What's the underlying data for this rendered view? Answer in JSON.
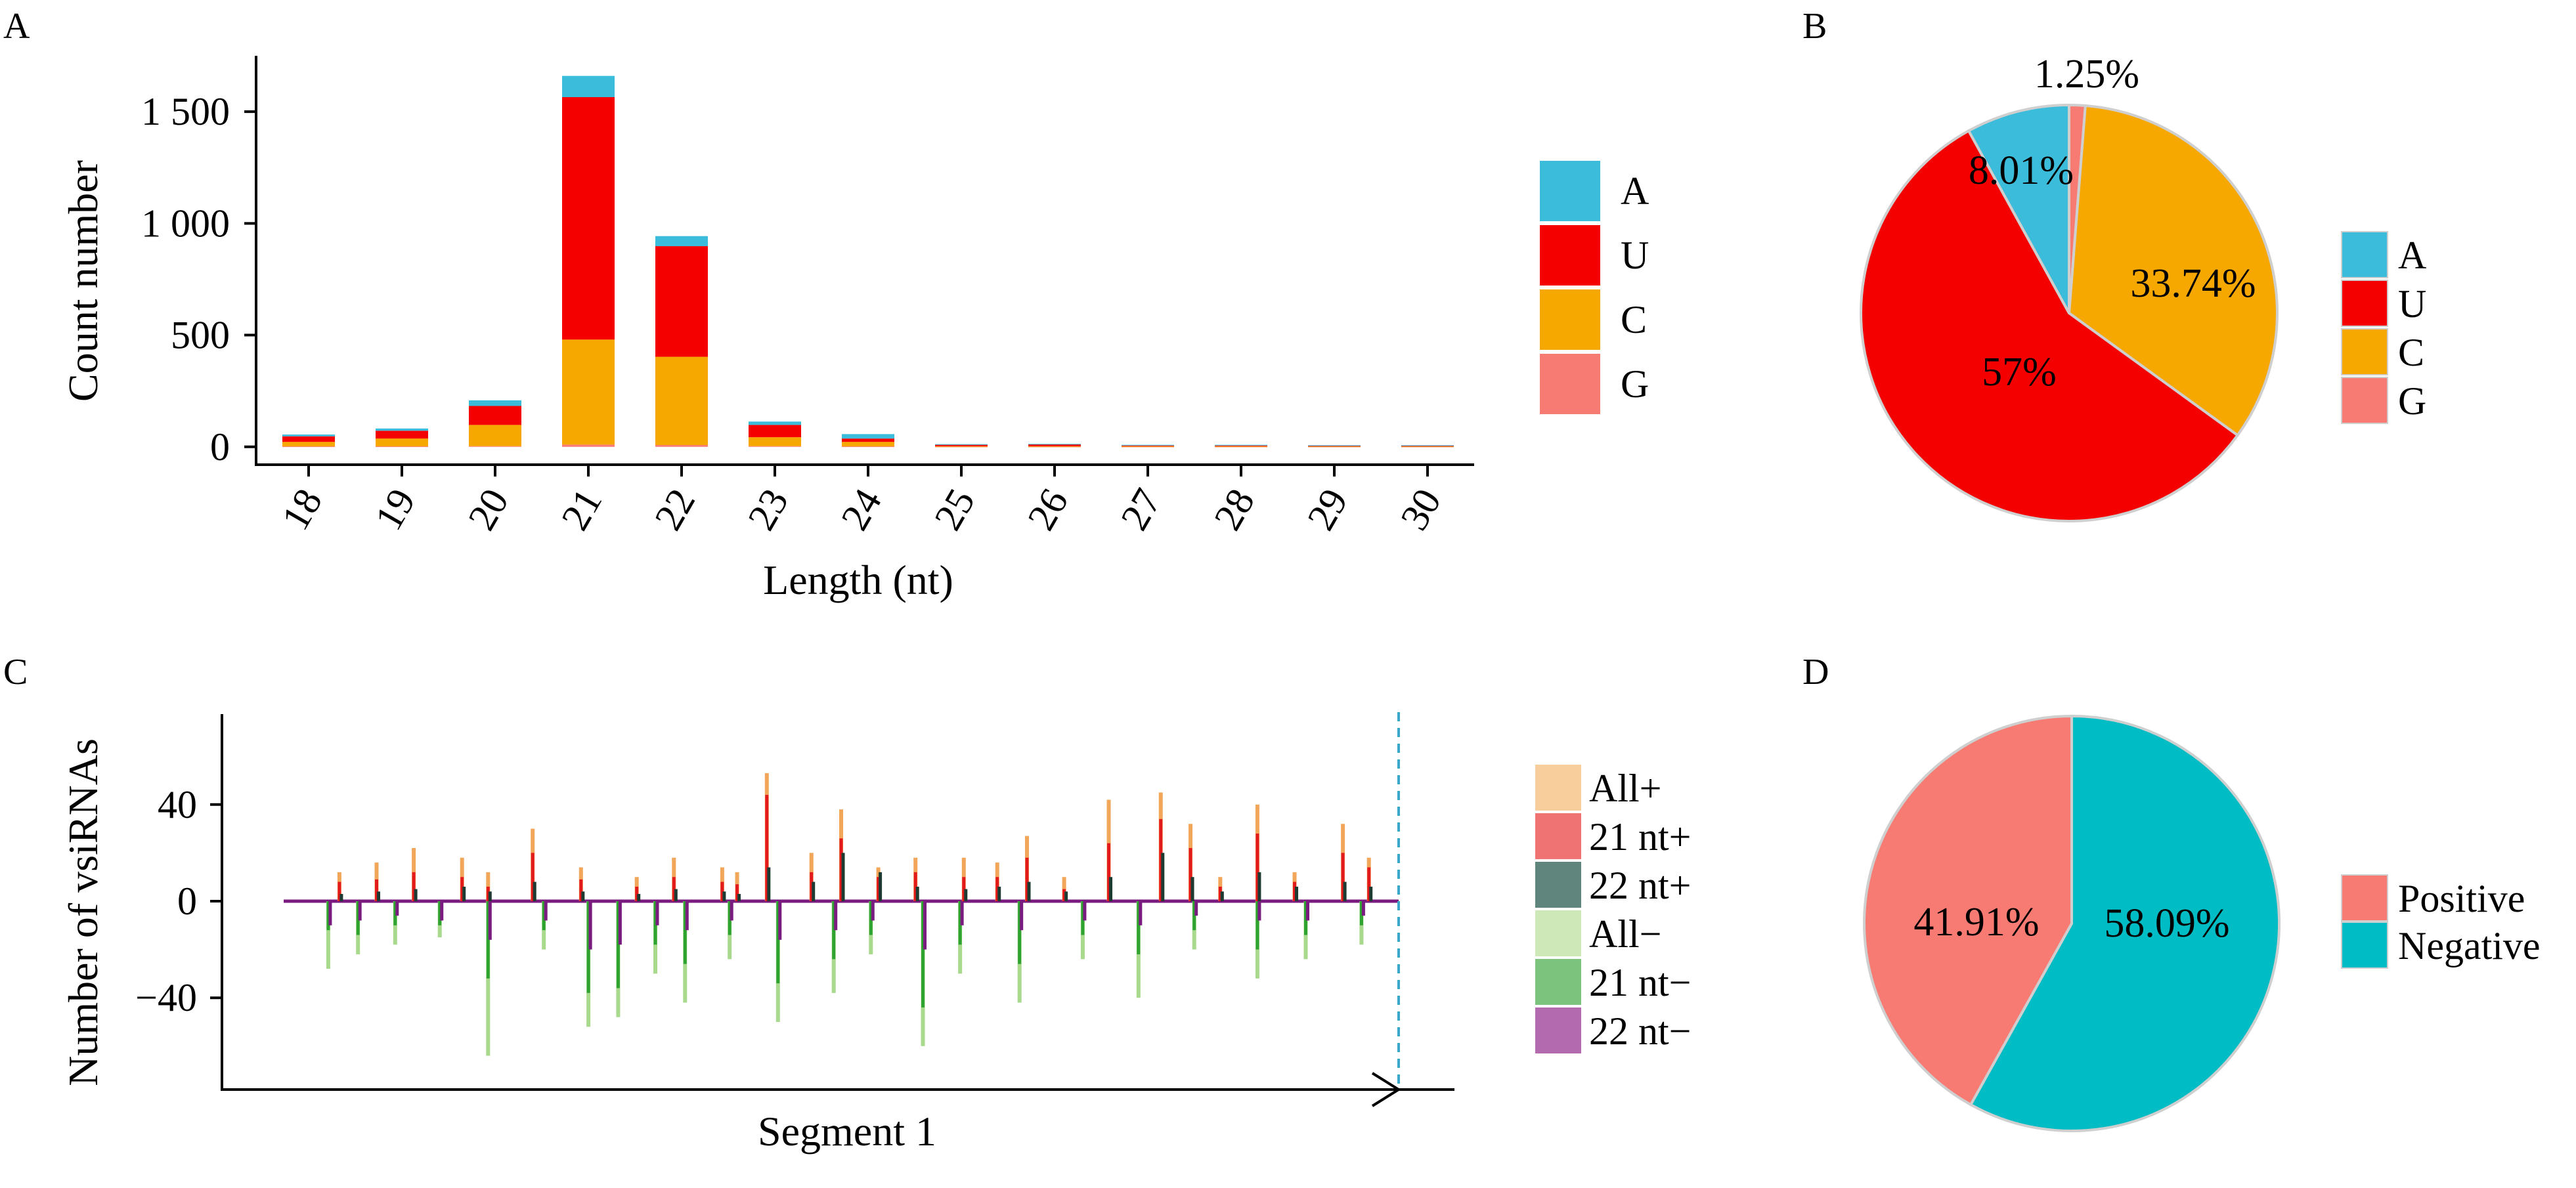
{
  "colors": {
    "A": "#3bbcda",
    "U": "#f50000",
    "C": "#f7a800",
    "G": "#f77a73",
    "all_plus": "#f8cf9c",
    "nt21_plus": "#ef7373",
    "nt22_plus": "#5f857d",
    "all_minus": "#cfe8b8",
    "nt21_minus": "#7cc47d",
    "nt22_minus": "#b46aae",
    "line_all_plus": "#f2a65a",
    "line_21_plus": "#e31a1c",
    "line_22_plus": "#1e3b33",
    "line_all_minus": "#a9d98d",
    "line_21_minus": "#2fa32f",
    "line_22_minus": "#7a1c7f",
    "positive": "#f77a73",
    "negative": "#00bcc4",
    "dashed": "#3aa8c8"
  },
  "panel_a": {
    "letter": "A",
    "chart_data": {
      "type": "bar",
      "stacked": true,
      "categories": [
        "18",
        "19",
        "20",
        "21",
        "22",
        "23",
        "24",
        "25",
        "26",
        "27",
        "28",
        "29",
        "30"
      ],
      "series": [
        {
          "name": "A",
          "values": [
            8,
            10,
            25,
            95,
            45,
            15,
            20,
            3,
            2,
            3,
            3,
            2,
            2
          ]
        },
        {
          "name": "U",
          "values": [
            25,
            35,
            85,
            1085,
            495,
            55,
            15,
            6,
            8,
            3,
            3,
            2,
            2
          ]
        },
        {
          "name": "C",
          "values": [
            20,
            35,
            95,
            470,
            395,
            40,
            20,
            2,
            2,
            2,
            2,
            2,
            2
          ]
        },
        {
          "name": "G",
          "values": [
            2,
            2,
            3,
            10,
            8,
            3,
            2,
            1,
            1,
            1,
            1,
            1,
            1
          ]
        }
      ],
      "xlabel": "Length (nt)",
      "ylabel": "Count number",
      "ylim": [
        -80,
        1750
      ],
      "yticks": [
        0,
        500,
        1000,
        1500
      ],
      "ytick_labels": [
        "0",
        "500",
        "1 000",
        "1 500"
      ],
      "legend": [
        "A",
        "U",
        "C",
        "G"
      ],
      "legend_position": "right"
    }
  },
  "panel_b": {
    "letter": "B",
    "chart_data": {
      "type": "pie",
      "labels": [
        "G",
        "C",
        "U",
        "A"
      ],
      "values": [
        1.25,
        33.74,
        57,
        8.01
      ],
      "value_labels": [
        "1.25%",
        "33.74%",
        "57%",
        "8.01%"
      ],
      "legend": [
        "A",
        "U",
        "C",
        "G"
      ],
      "legend_position": "right"
    }
  },
  "panel_c": {
    "letter": "C",
    "chart_data": {
      "type": "bar",
      "xlabel": "Segment 1",
      "ylabel": "Number of vsiRNAs",
      "ylim": [
        -78,
        78
      ],
      "yticks": [
        -40,
        0,
        40
      ],
      "ytick_labels": [
        "−40",
        "0",
        "40"
      ],
      "x_count": 300,
      "positive_peaks": [
        {
          "x": 15,
          "all": 12,
          "nt21": 8,
          "nt22": 3
        },
        {
          "x": 25,
          "all": 16,
          "nt21": 9,
          "nt22": 4
        },
        {
          "x": 35,
          "all": 22,
          "nt21": 12,
          "nt22": 5
        },
        {
          "x": 48,
          "all": 18,
          "nt21": 10,
          "nt22": 6
        },
        {
          "x": 55,
          "all": 12,
          "nt21": 6,
          "nt22": 4
        },
        {
          "x": 67,
          "all": 30,
          "nt21": 20,
          "nt22": 8
        },
        {
          "x": 80,
          "all": 14,
          "nt21": 9,
          "nt22": 4
        },
        {
          "x": 95,
          "all": 10,
          "nt21": 6,
          "nt22": 3
        },
        {
          "x": 105,
          "all": 18,
          "nt21": 10,
          "nt22": 5
        },
        {
          "x": 118,
          "all": 14,
          "nt21": 8,
          "nt22": 4
        },
        {
          "x": 122,
          "all": 12,
          "nt21": 7,
          "nt22": 3
        },
        {
          "x": 130,
          "all": 53,
          "nt21": 44,
          "nt22": 14
        },
        {
          "x": 142,
          "all": 20,
          "nt21": 12,
          "nt22": 8
        },
        {
          "x": 150,
          "all": 38,
          "nt21": 26,
          "nt22": 20
        },
        {
          "x": 160,
          "all": 14,
          "nt21": 10,
          "nt22": 12
        },
        {
          "x": 170,
          "all": 18,
          "nt21": 12,
          "nt22": 6
        },
        {
          "x": 183,
          "all": 18,
          "nt21": 10,
          "nt22": 5
        },
        {
          "x": 192,
          "all": 16,
          "nt21": 10,
          "nt22": 6
        },
        {
          "x": 200,
          "all": 27,
          "nt21": 18,
          "nt22": 8
        },
        {
          "x": 210,
          "all": 10,
          "nt21": 5,
          "nt22": 4
        },
        {
          "x": 222,
          "all": 42,
          "nt21": 24,
          "nt22": 10
        },
        {
          "x": 236,
          "all": 45,
          "nt21": 34,
          "nt22": 20
        },
        {
          "x": 244,
          "all": 32,
          "nt21": 22,
          "nt22": 10
        },
        {
          "x": 252,
          "all": 10,
          "nt21": 6,
          "nt22": 4
        },
        {
          "x": 262,
          "all": 40,
          "nt21": 28,
          "nt22": 12
        },
        {
          "x": 272,
          "all": 12,
          "nt21": 8,
          "nt22": 6
        },
        {
          "x": 285,
          "all": 32,
          "nt21": 20,
          "nt22": 8
        },
        {
          "x": 292,
          "all": 18,
          "nt21": 14,
          "nt22": 6
        }
      ],
      "negative_peaks": [
        {
          "x": 12,
          "all": -28,
          "nt21": -12,
          "nt22": -10
        },
        {
          "x": 20,
          "all": -22,
          "nt21": -14,
          "nt22": -8
        },
        {
          "x": 30,
          "all": -18,
          "nt21": -10,
          "nt22": -6
        },
        {
          "x": 42,
          "all": -15,
          "nt21": -10,
          "nt22": -8
        },
        {
          "x": 55,
          "all": -64,
          "nt21": -32,
          "nt22": -16
        },
        {
          "x": 70,
          "all": -20,
          "nt21": -12,
          "nt22": -8
        },
        {
          "x": 82,
          "all": -52,
          "nt21": -38,
          "nt22": -20
        },
        {
          "x": 90,
          "all": -48,
          "nt21": -36,
          "nt22": -18
        },
        {
          "x": 100,
          "all": -30,
          "nt21": -18,
          "nt22": -10
        },
        {
          "x": 108,
          "all": -42,
          "nt21": -26,
          "nt22": -12
        },
        {
          "x": 120,
          "all": -24,
          "nt21": -14,
          "nt22": -8
        },
        {
          "x": 133,
          "all": -50,
          "nt21": -34,
          "nt22": -16
        },
        {
          "x": 148,
          "all": -38,
          "nt21": -24,
          "nt22": -12
        },
        {
          "x": 158,
          "all": -22,
          "nt21": -14,
          "nt22": -8
        },
        {
          "x": 172,
          "all": -60,
          "nt21": -44,
          "nt22": -20
        },
        {
          "x": 182,
          "all": -30,
          "nt21": -18,
          "nt22": -10
        },
        {
          "x": 198,
          "all": -42,
          "nt21": -26,
          "nt22": -12
        },
        {
          "x": 215,
          "all": -24,
          "nt21": -14,
          "nt22": -8
        },
        {
          "x": 230,
          "all": -40,
          "nt21": -22,
          "nt22": -10
        },
        {
          "x": 245,
          "all": -20,
          "nt21": -12,
          "nt22": -6
        },
        {
          "x": 262,
          "all": -32,
          "nt21": -20,
          "nt22": -8
        },
        {
          "x": 275,
          "all": -24,
          "nt21": -14,
          "nt22": -8
        },
        {
          "x": 290,
          "all": -18,
          "nt21": -10,
          "nt22": -6
        }
      ],
      "marker_x": 300,
      "legend": [
        "All+",
        "21 nt+",
        "22 nt+",
        "All−",
        "21 nt−",
        "22 nt−"
      ],
      "legend_position": "right"
    }
  },
  "panel_d": {
    "letter": "D",
    "chart_data": {
      "type": "pie",
      "labels": [
        "Negative",
        "Positive"
      ],
      "values": [
        58.09,
        41.91
      ],
      "value_labels": [
        "58.09%",
        "41.91%"
      ],
      "legend": [
        "Positive",
        "Negative"
      ],
      "legend_position": "right"
    }
  }
}
